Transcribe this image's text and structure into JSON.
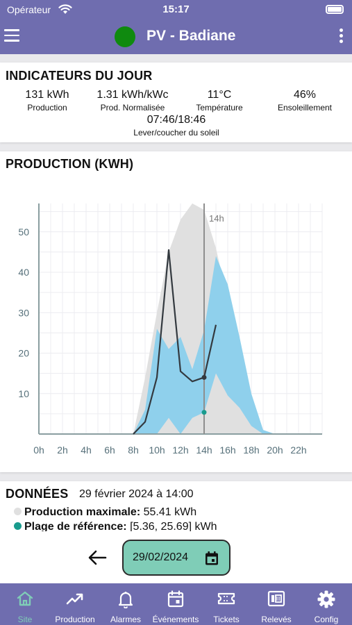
{
  "status_bar": {
    "carrier": "Opérateur",
    "time": "15:17"
  },
  "app_bar": {
    "title": "PV - Badiane",
    "status_color": "#0f8a0f"
  },
  "indicators": {
    "title": "INDICATEURS DU JOUR",
    "items": [
      {
        "value": "131 kWh",
        "label": "Production"
      },
      {
        "value": "1.31 kWh/kWc",
        "label": "Prod. Normalisée"
      },
      {
        "value": "11°C",
        "label": "Température"
      },
      {
        "value": "46%",
        "label": "Ensoleillement"
      },
      {
        "value": "07:46/18:46",
        "label": "Lever/coucher du soleil"
      }
    ]
  },
  "production": {
    "title": "PRODUCTION (KWH)",
    "chart_data": {
      "type": "area",
      "x_ticks": [
        "0h",
        "2h",
        "4h",
        "6h",
        "8h",
        "10h",
        "12h",
        "14h",
        "16h",
        "18h",
        "20h",
        "22h"
      ],
      "y_ticks": [
        10,
        20,
        30,
        40,
        50
      ],
      "ylim": [
        0,
        57
      ],
      "xlim": [
        0,
        24
      ],
      "grid": true,
      "cursor": {
        "x": 14,
        "label": "14h"
      },
      "series": [
        {
          "kind": "band",
          "color": "#e0e0e0",
          "x": [
            8,
            9,
            10,
            11,
            12,
            13,
            14,
            15,
            16,
            17,
            18,
            19,
            20
          ],
          "upper": [
            0,
            14,
            30,
            45,
            53,
            57,
            55.41,
            46,
            33,
            20,
            7,
            1,
            0
          ],
          "lower": [
            0,
            0,
            0,
            0,
            0,
            0,
            0,
            0,
            0,
            0,
            0,
            0,
            0
          ]
        },
        {
          "kind": "band",
          "color": "#8fd0ec",
          "x": [
            8,
            9,
            10,
            11,
            12,
            13,
            14,
            15,
            16,
            17,
            18,
            19,
            20
          ],
          "upper": [
            0,
            6,
            26,
            21,
            24,
            16,
            25.69,
            44,
            37,
            24,
            10,
            1,
            0
          ],
          "lower": [
            0,
            0,
            0,
            4,
            0,
            4,
            5.36,
            15,
            9.5,
            6.5,
            2,
            0,
            0
          ]
        },
        {
          "kind": "line",
          "color": "#33393f",
          "x": [
            8,
            9,
            10,
            11,
            12,
            13,
            14,
            15
          ],
          "y": [
            0,
            3,
            14,
            45.5,
            15.5,
            13,
            14,
            27
          ]
        },
        {
          "kind": "point",
          "color": "#199b8d",
          "x": [
            14
          ],
          "y": [
            5.36
          ]
        }
      ]
    }
  },
  "donnees": {
    "title": "DONNÉES",
    "timestamp": "29 février 2024 à 14:00",
    "rows": [
      {
        "label": "Production maximale:",
        "value": "55.41 kWh",
        "dot_color": "#e0e0e0"
      },
      {
        "label": "Plage de référence:",
        "value": "[5.36, 25.69] kWh",
        "dot_color": "#199b8d"
      }
    ]
  },
  "date_bar": {
    "date": "29/02/2024"
  },
  "bottom_nav": {
    "items": [
      {
        "label": "Site",
        "icon": "home-icon",
        "active": true
      },
      {
        "label": "Production",
        "icon": "trend-icon"
      },
      {
        "label": "Alarmes",
        "icon": "bell-icon"
      },
      {
        "label": "Événements",
        "icon": "calendar-icon"
      },
      {
        "label": "Tickets",
        "icon": "ticket-icon"
      },
      {
        "label": "Relevés",
        "icon": "meter-icon"
      },
      {
        "label": "Config",
        "icon": "gear-icon"
      }
    ]
  }
}
